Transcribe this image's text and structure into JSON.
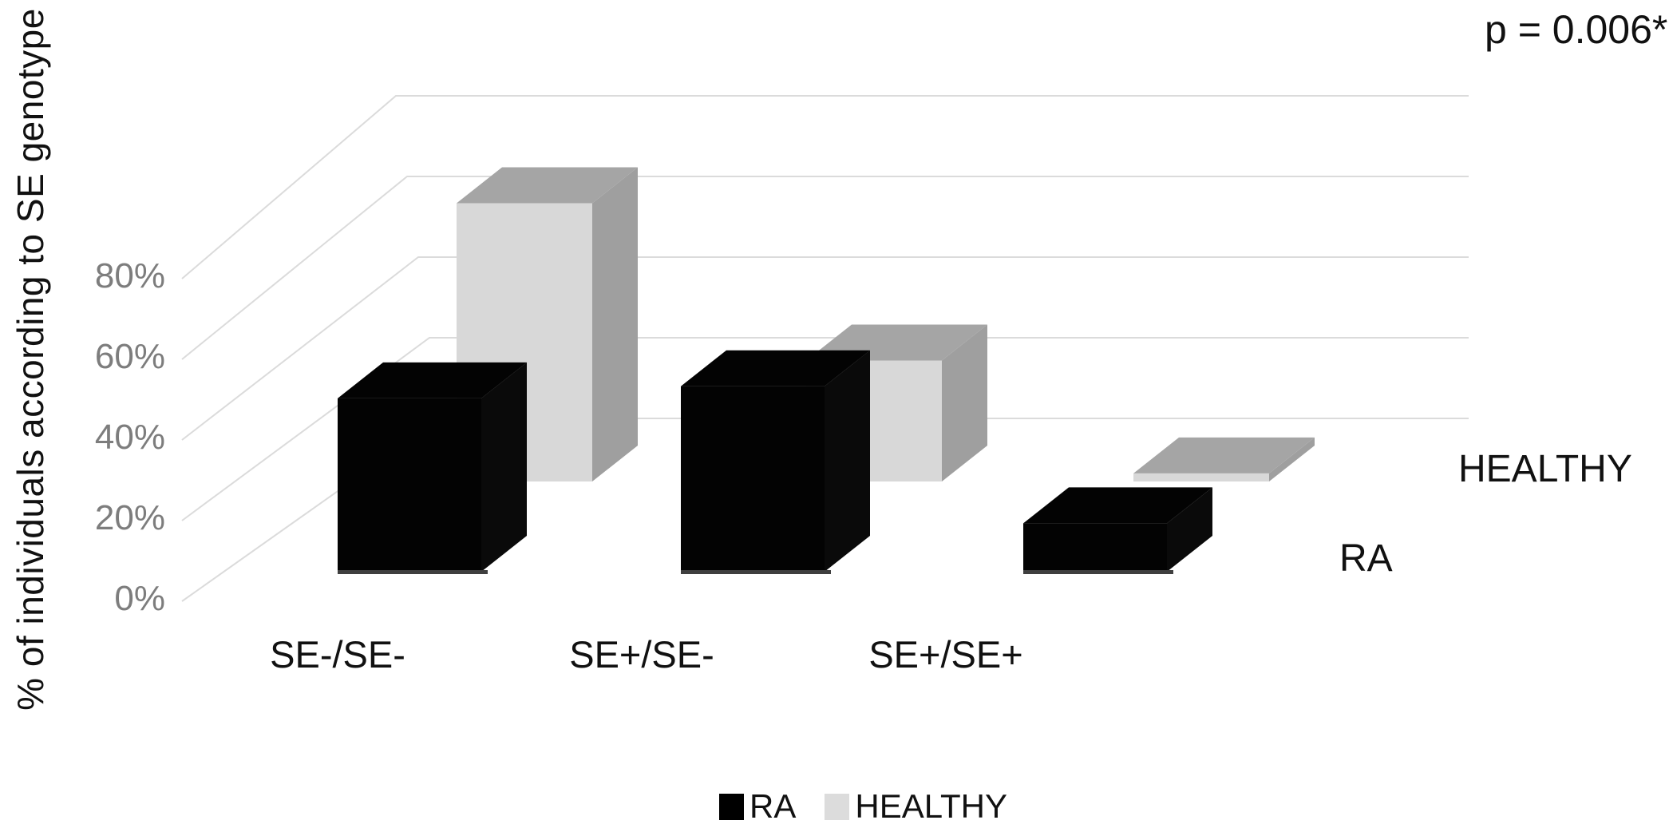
{
  "page": {
    "background": "#ffffff"
  },
  "chart_data": {
    "type": "bar",
    "projection": "3d-perspective",
    "title": "",
    "xlabel": "",
    "ylabel": "% of individuals according to SE genotype",
    "categories": [
      "SE-/SE-",
      "SE+/SE-",
      "SE+/SE+"
    ],
    "series": [
      {
        "name": "RA",
        "values": [
          43,
          46,
          12
        ],
        "color": "#000000"
      },
      {
        "name": "HEALTHY",
        "values": [
          69,
          30,
          2
        ],
        "color": "#d8d8d8"
      }
    ],
    "ylim": [
      0,
      100
    ],
    "ytick_step": 20,
    "ytick_labels": [
      "0%",
      "20%",
      "40%",
      "60%",
      "80%"
    ],
    "grid": true,
    "gridline_color": "#dbdbdb",
    "legend_position": "bottom",
    "annotation": "p = 0.006*"
  },
  "legend": {
    "items": [
      {
        "label": "RA",
        "color": "#000000"
      },
      {
        "label": "HEALTHY",
        "color": "#dcdcdc"
      }
    ]
  }
}
